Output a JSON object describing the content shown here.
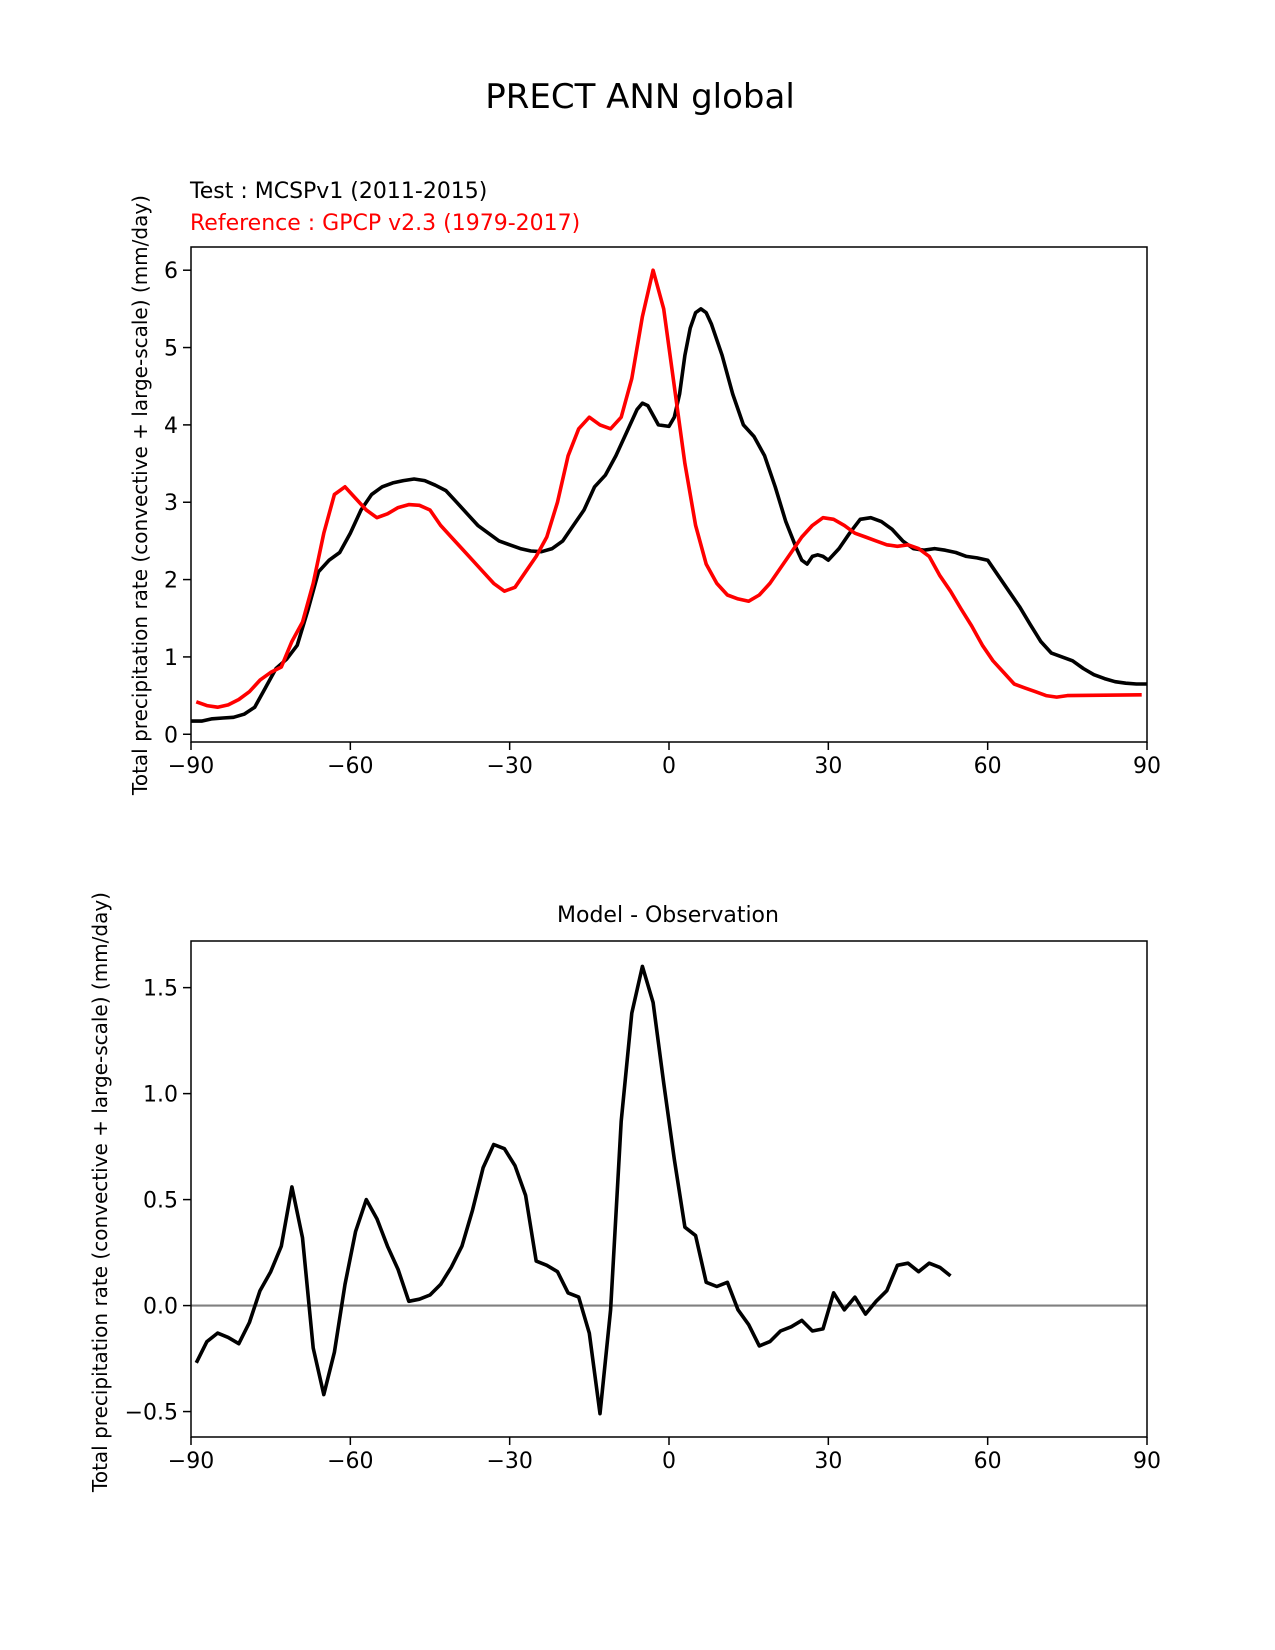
{
  "figure": {
    "title": "PRECT ANN global"
  },
  "chart_data": [
    {
      "type": "line",
      "title": "",
      "test_label": "Test : MCSPv1 (2011-2015)",
      "reference_label": "Reference : GPCP v2.3 (1979-2017)",
      "xlabel": "",
      "ylabel": "Total precipitation rate (convective + large-scale) (mm/day)",
      "xlim": [
        -90,
        90
      ],
      "ylim": [
        -0.1,
        6.3
      ],
      "xticks": [
        -90,
        -60,
        -30,
        0,
        30,
        60,
        90
      ],
      "xtick_labels": [
        "−90",
        "−60",
        "−30",
        "0",
        "30",
        "60",
        "90"
      ],
      "yticks": [
        0,
        1,
        2,
        3,
        4,
        5,
        6
      ],
      "ytick_labels": [
        "0",
        "1",
        "2",
        "3",
        "4",
        "5",
        "6"
      ],
      "grid": false,
      "colors": {
        "test": "#000000",
        "reference": "#ff0000"
      },
      "series": [
        {
          "key": "test",
          "points": [
            [
              -90,
              0.17
            ],
            [
              -88,
              0.17
            ],
            [
              -86,
              0.2
            ],
            [
              -84,
              0.21
            ],
            [
              -82,
              0.22
            ],
            [
              -80,
              0.26
            ],
            [
              -78,
              0.35
            ],
            [
              -76,
              0.6
            ],
            [
              -74,
              0.85
            ],
            [
              -72,
              0.97
            ],
            [
              -70,
              1.15
            ],
            [
              -68,
              1.6
            ],
            [
              -66,
              2.1
            ],
            [
              -64,
              2.25
            ],
            [
              -62,
              2.35
            ],
            [
              -60,
              2.6
            ],
            [
              -58,
              2.9
            ],
            [
              -56,
              3.1
            ],
            [
              -54,
              3.2
            ],
            [
              -52,
              3.25
            ],
            [
              -50,
              3.28
            ],
            [
              -48,
              3.3
            ],
            [
              -46,
              3.28
            ],
            [
              -44,
              3.22
            ],
            [
              -42,
              3.15
            ],
            [
              -40,
              3.0
            ],
            [
              -38,
              2.85
            ],
            [
              -36,
              2.7
            ],
            [
              -34,
              2.6
            ],
            [
              -32,
              2.5
            ],
            [
              -30,
              2.45
            ],
            [
              -28,
              2.4
            ],
            [
              -26,
              2.37
            ],
            [
              -24,
              2.36
            ],
            [
              -22,
              2.4
            ],
            [
              -20,
              2.5
            ],
            [
              -18,
              2.7
            ],
            [
              -16,
              2.9
            ],
            [
              -14,
              3.2
            ],
            [
              -12,
              3.35
            ],
            [
              -10,
              3.6
            ],
            [
              -8,
              3.9
            ],
            [
              -6,
              4.2
            ],
            [
              -5,
              4.28
            ],
            [
              -4,
              4.25
            ],
            [
              -2,
              4.0
            ],
            [
              0,
              3.98
            ],
            [
              1,
              4.1
            ],
            [
              2,
              4.4
            ],
            [
              3,
              4.9
            ],
            [
              4,
              5.25
            ],
            [
              5,
              5.45
            ],
            [
              6,
              5.5
            ],
            [
              7,
              5.45
            ],
            [
              8,
              5.3
            ],
            [
              10,
              4.9
            ],
            [
              12,
              4.4
            ],
            [
              14,
              4.0
            ],
            [
              16,
              3.85
            ],
            [
              18,
              3.6
            ],
            [
              20,
              3.2
            ],
            [
              22,
              2.75
            ],
            [
              24,
              2.4
            ],
            [
              25,
              2.25
            ],
            [
              26,
              2.2
            ],
            [
              27,
              2.3
            ],
            [
              28,
              2.32
            ],
            [
              29,
              2.3
            ],
            [
              30,
              2.25
            ],
            [
              32,
              2.4
            ],
            [
              34,
              2.6
            ],
            [
              36,
              2.78
            ],
            [
              38,
              2.8
            ],
            [
              40,
              2.75
            ],
            [
              42,
              2.65
            ],
            [
              44,
              2.5
            ],
            [
              46,
              2.4
            ],
            [
              48,
              2.38
            ],
            [
              50,
              2.4
            ],
            [
              52,
              2.38
            ],
            [
              54,
              2.35
            ],
            [
              56,
              2.3
            ],
            [
              58,
              2.28
            ],
            [
              60,
              2.25
            ],
            [
              62,
              2.05
            ],
            [
              64,
              1.85
            ],
            [
              66,
              1.65
            ],
            [
              68,
              1.42
            ],
            [
              70,
              1.2
            ],
            [
              72,
              1.05
            ],
            [
              74,
              1.0
            ],
            [
              76,
              0.95
            ],
            [
              78,
              0.85
            ],
            [
              80,
              0.77
            ],
            [
              82,
              0.72
            ],
            [
              84,
              0.68
            ],
            [
              86,
              0.66
            ],
            [
              88,
              0.65
            ],
            [
              90,
              0.65
            ]
          ]
        },
        {
          "key": "reference",
          "points": [
            [
              -89,
              0.42
            ],
            [
              -87,
              0.37
            ],
            [
              -85,
              0.35
            ],
            [
              -83,
              0.38
            ],
            [
              -81,
              0.45
            ],
            [
              -79,
              0.55
            ],
            [
              -77,
              0.7
            ],
            [
              -75,
              0.8
            ],
            [
              -73,
              0.87
            ],
            [
              -71,
              1.2
            ],
            [
              -69,
              1.45
            ],
            [
              -67,
              1.95
            ],
            [
              -65,
              2.6
            ],
            [
              -63,
              3.1
            ],
            [
              -61,
              3.2
            ],
            [
              -59,
              3.05
            ],
            [
              -57,
              2.9
            ],
            [
              -55,
              2.8
            ],
            [
              -53,
              2.85
            ],
            [
              -51,
              2.93
            ],
            [
              -49,
              2.97
            ],
            [
              -47,
              2.96
            ],
            [
              -45,
              2.9
            ],
            [
              -43,
              2.7
            ],
            [
              -41,
              2.55
            ],
            [
              -39,
              2.4
            ],
            [
              -37,
              2.25
            ],
            [
              -35,
              2.1
            ],
            [
              -33,
              1.95
            ],
            [
              -31,
              1.85
            ],
            [
              -29,
              1.9
            ],
            [
              -27,
              2.1
            ],
            [
              -25,
              2.3
            ],
            [
              -23,
              2.55
            ],
            [
              -21,
              3.0
            ],
            [
              -19,
              3.6
            ],
            [
              -17,
              3.95
            ],
            [
              -15,
              4.1
            ],
            [
              -13,
              4.0
            ],
            [
              -11,
              3.95
            ],
            [
              -9,
              4.1
            ],
            [
              -7,
              4.6
            ],
            [
              -5,
              5.4
            ],
            [
              -3,
              6.0
            ],
            [
              -1,
              5.5
            ],
            [
              1,
              4.5
            ],
            [
              3,
              3.5
            ],
            [
              5,
              2.7
            ],
            [
              7,
              2.2
            ],
            [
              9,
              1.95
            ],
            [
              11,
              1.8
            ],
            [
              13,
              1.75
            ],
            [
              15,
              1.72
            ],
            [
              17,
              1.8
            ],
            [
              19,
              1.95
            ],
            [
              21,
              2.15
            ],
            [
              23,
              2.35
            ],
            [
              25,
              2.55
            ],
            [
              27,
              2.7
            ],
            [
              29,
              2.8
            ],
            [
              31,
              2.78
            ],
            [
              33,
              2.7
            ],
            [
              35,
              2.6
            ],
            [
              37,
              2.55
            ],
            [
              39,
              2.5
            ],
            [
              41,
              2.45
            ],
            [
              43,
              2.43
            ],
            [
              45,
              2.45
            ],
            [
              47,
              2.4
            ],
            [
              49,
              2.3
            ],
            [
              51,
              2.05
            ],
            [
              53,
              1.85
            ],
            [
              55,
              1.62
            ],
            [
              57,
              1.4
            ],
            [
              59,
              1.15
            ],
            [
              61,
              0.95
            ],
            [
              63,
              0.8
            ],
            [
              65,
              0.65
            ],
            [
              67,
              0.6
            ],
            [
              69,
              0.55
            ],
            [
              71,
              0.5
            ],
            [
              73,
              0.48
            ],
            [
              75,
              0.5
            ],
            [
              89,
              0.51
            ]
          ]
        }
      ]
    },
    {
      "type": "line",
      "title": "Model - Observation",
      "xlabel": "",
      "ylabel": "Total precipitation rate (convective + large-scale) (mm/day)",
      "xlim": [
        -90,
        90
      ],
      "ylim": [
        -0.62,
        1.72
      ],
      "xticks": [
        -90,
        -60,
        -30,
        0,
        30,
        60,
        90
      ],
      "xtick_labels": [
        "−90",
        "−60",
        "−30",
        "0",
        "30",
        "60",
        "90"
      ],
      "yticks": [
        -0.5,
        0.0,
        0.5,
        1.0,
        1.5
      ],
      "ytick_labels": [
        "−0.5",
        "0.0",
        "0.5",
        "1.0",
        "1.5"
      ],
      "grid": false,
      "zero_line": {
        "value": 0,
        "color": "#808080"
      },
      "colors": {
        "difference": "#000000"
      },
      "series": [
        {
          "key": "difference",
          "points": [
            [
              -89,
              -0.27
            ],
            [
              -87,
              -0.17
            ],
            [
              -85,
              -0.13
            ],
            [
              -83,
              -0.15
            ],
            [
              -81,
              -0.18
            ],
            [
              -79,
              -0.08
            ],
            [
              -77,
              0.07
            ],
            [
              -75,
              0.16
            ],
            [
              -73,
              0.28
            ],
            [
              -71,
              0.56
            ],
            [
              -69,
              0.32
            ],
            [
              -67,
              -0.2
            ],
            [
              -65,
              -0.42
            ],
            [
              -63,
              -0.22
            ],
            [
              -61,
              0.1
            ],
            [
              -59,
              0.35
            ],
            [
              -57,
              0.5
            ],
            [
              -55,
              0.41
            ],
            [
              -53,
              0.28
            ],
            [
              -51,
              0.17
            ],
            [
              -49,
              0.02
            ],
            [
              -47,
              0.03
            ],
            [
              -45,
              0.05
            ],
            [
              -43,
              0.1
            ],
            [
              -41,
              0.18
            ],
            [
              -39,
              0.28
            ],
            [
              -37,
              0.45
            ],
            [
              -35,
              0.65
            ],
            [
              -33,
              0.76
            ],
            [
              -31,
              0.74
            ],
            [
              -29,
              0.66
            ],
            [
              -27,
              0.52
            ],
            [
              -25,
              0.21
            ],
            [
              -23,
              0.19
            ],
            [
              -21,
              0.16
            ],
            [
              -19,
              0.06
            ],
            [
              -17,
              0.04
            ],
            [
              -15,
              -0.13
            ],
            [
              -13,
              -0.51
            ],
            [
              -11,
              -0.02
            ],
            [
              -9,
              0.87
            ],
            [
              -7,
              1.38
            ],
            [
              -5,
              1.6
            ],
            [
              -3,
              1.43
            ],
            [
              -1,
              1.05
            ],
            [
              1,
              0.69
            ],
            [
              3,
              0.37
            ],
            [
              5,
              0.33
            ],
            [
              7,
              0.11
            ],
            [
              9,
              0.09
            ],
            [
              11,
              0.11
            ],
            [
              13,
              -0.02
            ],
            [
              15,
              -0.09
            ],
            [
              17,
              -0.19
            ],
            [
              19,
              -0.17
            ],
            [
              21,
              -0.12
            ],
            [
              23,
              -0.1
            ],
            [
              25,
              -0.07
            ],
            [
              27,
              -0.12
            ],
            [
              29,
              -0.11
            ],
            [
              31,
              0.06
            ],
            [
              33,
              -0.02
            ],
            [
              35,
              0.04
            ],
            [
              37,
              -0.04
            ],
            [
              39,
              0.02
            ],
            [
              41,
              0.07
            ],
            [
              43,
              0.19
            ],
            [
              45,
              0.2
            ],
            [
              47,
              0.16
            ],
            [
              49,
              0.2
            ],
            [
              51,
              0.18
            ],
            [
              53,
              0.14
            ]
          ]
        }
      ]
    }
  ]
}
